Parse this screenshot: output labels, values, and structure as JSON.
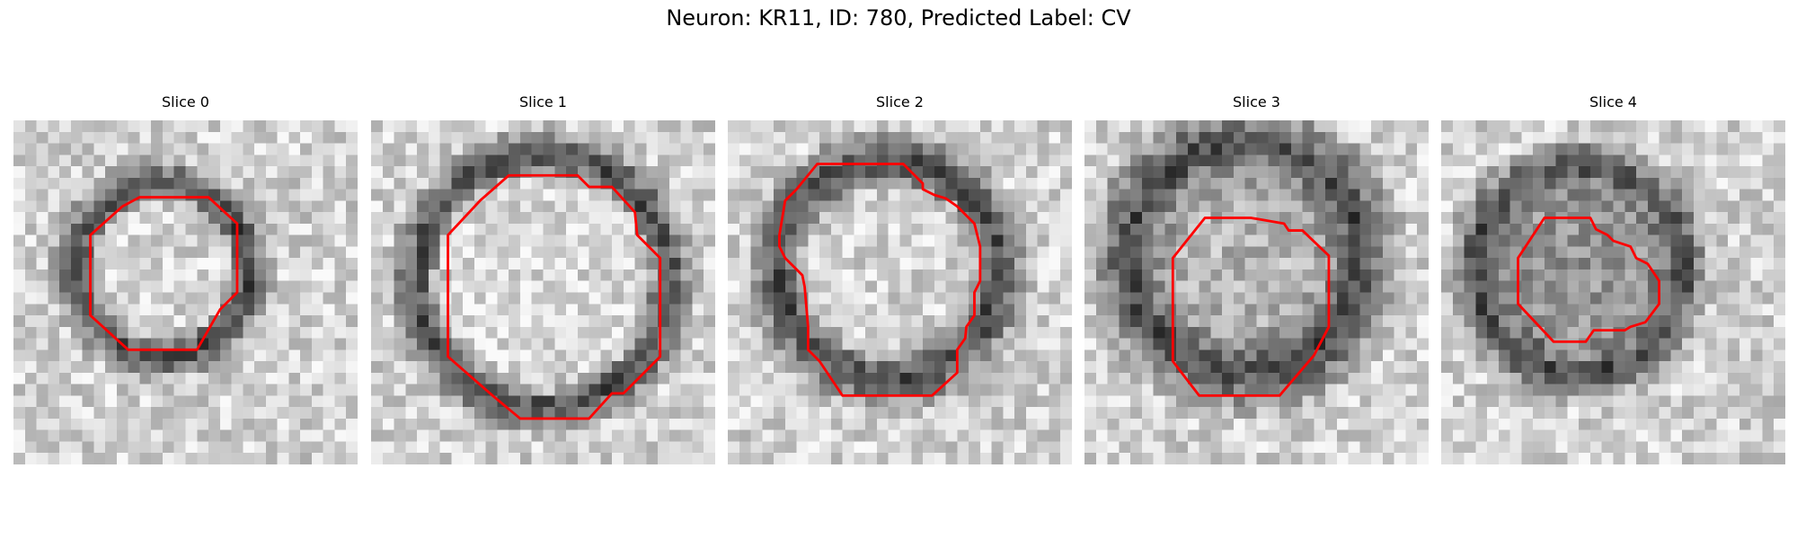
{
  "figure": {
    "title": "Neuron: KR11, ID: 780, Predicted Label: CV"
  },
  "colors": {
    "contour": "#ff0000",
    "background": "#ffffff",
    "colormap": "grayscale"
  },
  "grid_size": 30,
  "panels": [
    {
      "title": "Slice 0",
      "blob_center": [
        13,
        13
      ],
      "ring_radius": 7.5,
      "ring_width": 2.6,
      "interior_brightness": 0.86,
      "contour": [
        [
          11,
          6.7
        ],
        [
          17,
          6.7
        ],
        [
          19.5,
          9
        ],
        [
          19.5,
          15
        ],
        [
          18,
          16.5
        ],
        [
          16,
          20
        ],
        [
          10,
          20
        ],
        [
          6.7,
          17
        ],
        [
          6.7,
          10
        ],
        [
          9.5,
          7.5
        ]
      ]
    },
    {
      "title": "Slice 1",
      "blob_center": [
        15,
        14
      ],
      "ring_radius": 11,
      "ring_width": 2.8,
      "interior_brightness": 0.88,
      "contour": [
        [
          12,
          4.8
        ],
        [
          18,
          4.8
        ],
        [
          19,
          5.8
        ],
        [
          21,
          5.8
        ],
        [
          23,
          8
        ],
        [
          23.2,
          10
        ],
        [
          25.2,
          12
        ],
        [
          25.2,
          20.6
        ],
        [
          22,
          23.8
        ],
        [
          21,
          23.8
        ],
        [
          19,
          26
        ],
        [
          13,
          26
        ],
        [
          10.6,
          24
        ],
        [
          6.7,
          20.6
        ],
        [
          6.7,
          10
        ],
        [
          9.5,
          7
        ]
      ]
    },
    {
      "title": "Slice 2",
      "blob_center": [
        14,
        13
      ],
      "ring_radius": 9.5,
      "ring_width": 3.4,
      "interior_brightness": 0.85,
      "contour": [
        [
          7.8,
          3.8
        ],
        [
          15.3,
          3.8
        ],
        [
          17,
          5.5
        ],
        [
          17,
          6
        ],
        [
          18,
          6.5
        ],
        [
          19,
          6.8
        ],
        [
          20,
          7.5
        ],
        [
          21.5,
          9
        ],
        [
          22,
          11
        ],
        [
          22,
          14
        ],
        [
          21.5,
          15
        ],
        [
          21.5,
          17
        ],
        [
          20.8,
          18
        ],
        [
          20.7,
          19
        ],
        [
          20,
          20
        ],
        [
          20,
          22
        ],
        [
          17.8,
          24
        ],
        [
          10,
          24
        ],
        [
          8,
          21
        ],
        [
          7,
          20
        ],
        [
          7,
          18
        ],
        [
          6.7,
          14.5
        ],
        [
          6.5,
          13.5
        ],
        [
          5,
          12
        ],
        [
          4.5,
          11
        ],
        [
          4.5,
          10
        ],
        [
          5,
          7
        ],
        [
          6,
          6
        ]
      ]
    },
    {
      "title": "Slice 3",
      "blob_center": [
        14,
        12
      ],
      "ring_radius": 10,
      "ring_width": 4.5,
      "interior_brightness": 0.6,
      "contour": [
        [
          10.5,
          8.5
        ],
        [
          14.5,
          8.5
        ],
        [
          17.4,
          9
        ],
        [
          17.8,
          9.6
        ],
        [
          19,
          9.6
        ],
        [
          21.3,
          11.8
        ],
        [
          21.3,
          18
        ],
        [
          20,
          20.5
        ],
        [
          17,
          24
        ],
        [
          10,
          24
        ],
        [
          7.7,
          21
        ],
        [
          7.7,
          12
        ]
      ]
    },
    {
      "title": "Slice 4",
      "blob_center": [
        12,
        13
      ],
      "ring_radius": 9,
      "ring_width": 3.0,
      "interior_brightness": 0.35,
      "contour": [
        [
          9,
          8.5
        ],
        [
          13,
          8.5
        ],
        [
          13.5,
          9.5
        ],
        [
          14.5,
          10
        ],
        [
          15,
          10.5
        ],
        [
          16.5,
          11
        ],
        [
          17,
          12
        ],
        [
          18,
          12.5
        ],
        [
          19,
          14
        ],
        [
          19,
          16
        ],
        [
          17.8,
          17.6
        ],
        [
          16.5,
          18
        ],
        [
          16,
          18.3
        ],
        [
          13.3,
          18.3
        ],
        [
          12.6,
          19.3
        ],
        [
          9.8,
          19.3
        ],
        [
          6.7,
          16
        ],
        [
          6.7,
          12
        ]
      ]
    }
  ]
}
